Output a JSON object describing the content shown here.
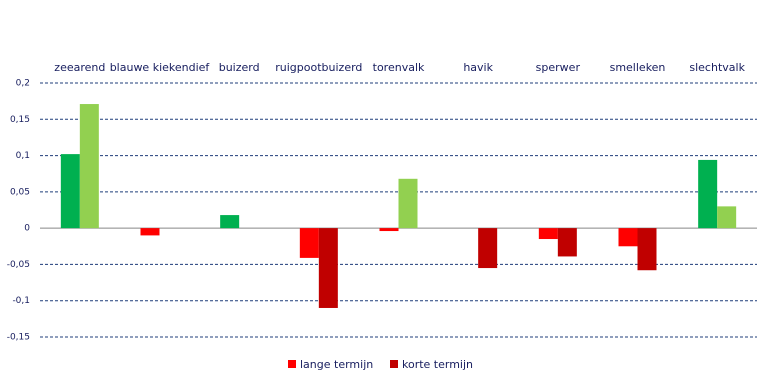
{
  "chart_data": {
    "type": "bar",
    "categories": [
      "zeearend",
      "blauwe kiekendief",
      "buizerd",
      "ruigpootbuizerd",
      "torenvalk",
      "havik",
      "sperwer",
      "smelleken",
      "slechtvalk"
    ],
    "series": [
      {
        "name": "lange termijn",
        "color": "#ff0000",
        "positive_color": "#00b050",
        "values": [
          0.102,
          -0.01,
          0.018,
          -0.041,
          -0.004,
          null,
          -0.015,
          -0.025,
          0.094
        ]
      },
      {
        "name": "korte termijn",
        "color": "#c00000",
        "positive_color": "#92d050",
        "values": [
          0.171,
          null,
          null,
          -0.11,
          0.068,
          -0.055,
          -0.039,
          -0.058,
          0.03
        ]
      }
    ],
    "ylim": [
      -0.15,
      0.2
    ],
    "yticks": [
      {
        "value": -0.15,
        "label": "-0,15"
      },
      {
        "value": -0.1,
        "label": "-0,1"
      },
      {
        "value": -0.05,
        "label": "-0,05"
      },
      0,
      {
        "value": 0.05,
        "label": "0,05"
      },
      {
        "value": 0.1,
        "label": "0,1"
      },
      {
        "value": 0.15,
        "label": "0,15"
      },
      {
        "value": 0.2,
        "label": "0,2"
      }
    ],
    "grid": true,
    "legend": "bottom"
  }
}
